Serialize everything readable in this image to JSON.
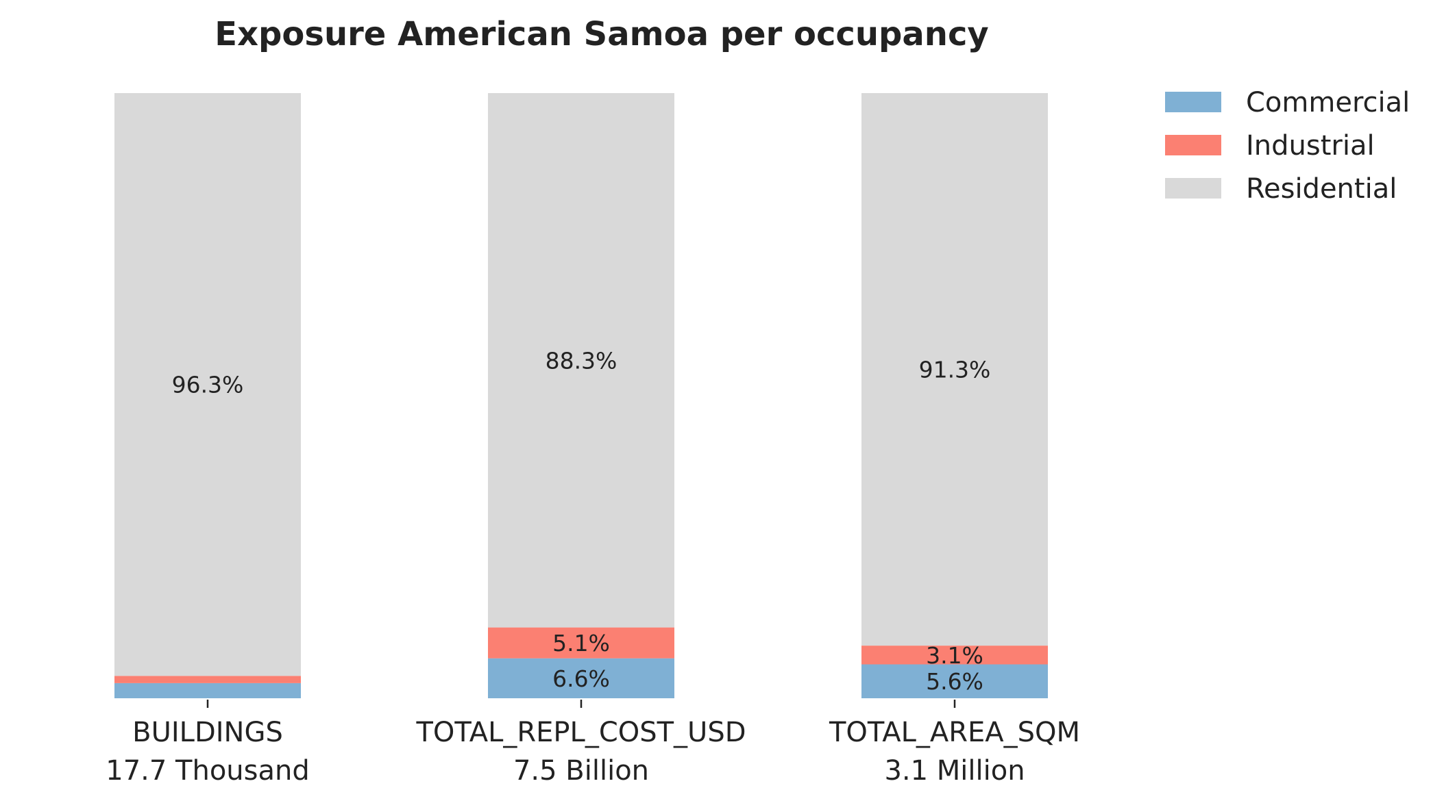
{
  "chart_data": {
    "type": "bar",
    "stacked": true,
    "normalized": true,
    "title": "Exposure American Samoa per occupancy",
    "xlabel": "",
    "ylabel": "",
    "ylim": [
      0,
      100
    ],
    "grid": false,
    "legend_position": "top-right",
    "categories": [
      "BUILDINGS",
      "TOTAL_REPL_COST_USD",
      "TOTAL_AREA_SQM"
    ],
    "category_totals": [
      "17.7 Thousand",
      "7.5 Billion",
      "3.1 Million"
    ],
    "series": [
      {
        "name": "Commercial",
        "color": "#7fb0d4",
        "values": [
          2.5,
          6.6,
          5.6
        ],
        "labels": [
          "",
          "6.6%",
          "5.6%"
        ]
      },
      {
        "name": "Industrial",
        "color": "#fb8072",
        "values": [
          1.2,
          5.1,
          3.1
        ],
        "labels": [
          "",
          "5.1%",
          "3.1%"
        ]
      },
      {
        "name": "Residential",
        "color": "#d9d9d9",
        "values": [
          96.3,
          88.3,
          91.3
        ],
        "labels": [
          "96.3%",
          "88.3%",
          "91.3%"
        ]
      }
    ]
  }
}
